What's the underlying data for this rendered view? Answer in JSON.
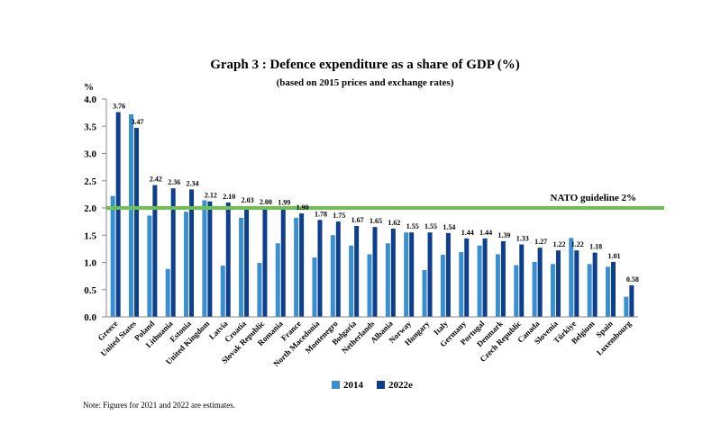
{
  "chart_data": {
    "type": "bar",
    "title": "Graph 3 : Defence expenditure as a share of GDP (%)",
    "subtitle": "(based on 2015 prices and exchange rates)",
    "ylabel": "%",
    "xlabel": "",
    "ylim": [
      0,
      4.0
    ],
    "yticks": [
      "0.0",
      "0.5",
      "1.0",
      "1.5",
      "2.0",
      "2.5",
      "3.0",
      "3.5",
      "4.0"
    ],
    "categories": [
      "Greece",
      "United States",
      "Poland",
      "Lithuania",
      "Estonia",
      "United Kingdom",
      "Latvia",
      "Croatia",
      "Slovak Republic",
      "Romania",
      "France",
      "North Macedonia",
      "Montenegro",
      "Bulgaria",
      "Netherlands",
      "Albania",
      "Norway",
      "Hungary",
      "Italy",
      "Germany",
      "Portugal",
      "Denmark",
      "Czech Republic",
      "Canada",
      "Slovenia",
      "Türkiye",
      "Belgium",
      "Spain",
      "Luxembourg"
    ],
    "series": [
      {
        "name": "2014",
        "color": "#3a8fd0",
        "values": [
          2.22,
          3.72,
          1.86,
          0.88,
          1.93,
          2.14,
          0.94,
          1.82,
          0.99,
          1.35,
          1.82,
          1.09,
          1.5,
          1.31,
          1.15,
          1.35,
          1.55,
          0.86,
          1.14,
          1.19,
          1.31,
          1.15,
          0.95,
          1.01,
          0.97,
          1.45,
          0.97,
          0.92,
          0.37
        ]
      },
      {
        "name": "2022e",
        "color": "#0e3f8c",
        "values": [
          3.76,
          3.47,
          2.42,
          2.36,
          2.34,
          2.12,
          2.1,
          2.03,
          2.0,
          1.99,
          1.9,
          1.78,
          1.75,
          1.67,
          1.65,
          1.62,
          1.55,
          1.55,
          1.54,
          1.44,
          1.44,
          1.39,
          1.33,
          1.27,
          1.22,
          1.22,
          1.18,
          1.01,
          0.58
        ],
        "labels": [
          "3.76",
          "3.47",
          "2.42",
          "2.36",
          "2.34",
          "2.12",
          "2.10",
          "2.03",
          "2.00",
          "1.99",
          "1.90",
          "1.78",
          "1.75",
          "1.67",
          "1.65",
          "1.62",
          "1.55",
          "1.55",
          "1.54",
          "1.44",
          "1.44",
          "1.39",
          "1.33",
          "1.27",
          "1.22",
          "1.22",
          "1.18",
          "1.01",
          "0.58"
        ]
      }
    ],
    "guideline": {
      "value": 2.0,
      "label": "NATO guideline 2%",
      "color": "#6cc24a"
    },
    "legend_position": "bottom-center",
    "grid": false
  },
  "note": "Note: Figures for 2021 and 2022 are estimates."
}
